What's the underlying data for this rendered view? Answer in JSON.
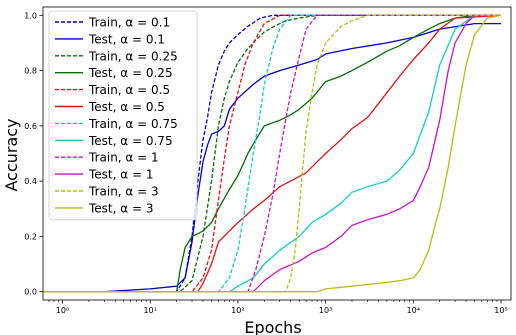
{
  "chart_data": {
    "type": "line",
    "xlabel": "Epochs",
    "ylabel": "Accuracy",
    "xscale": "log",
    "xlim": [
      0.6,
      130000
    ],
    "ylim": [
      -0.03,
      1.03
    ],
    "xticks": [
      1,
      10,
      100,
      1000,
      10000,
      100000
    ],
    "xtick_labels": [
      "10⁰",
      "10¹",
      "10²",
      "10³",
      "10⁴",
      "10⁵"
    ],
    "yticks": [
      0.0,
      0.2,
      0.4,
      0.6,
      0.8,
      1.0
    ],
    "ytick_labels": [
      "0.0",
      "0.2",
      "0.4",
      "0.6",
      "0.8",
      "1.0"
    ],
    "grid": false,
    "legend_position": "top-left",
    "series": [
      {
        "name": "Train, α = 0.1",
        "color": "#0000cc",
        "dash": true,
        "x": [
          0.6,
          20,
          25,
          30,
          35,
          40,
          45,
          50,
          60,
          70,
          80,
          100,
          130,
          180,
          250,
          400,
          100000
        ],
        "y": [
          0,
          0,
          0.05,
          0.2,
          0.4,
          0.55,
          0.63,
          0.72,
          0.82,
          0.87,
          0.9,
          0.93,
          0.96,
          0.99,
          1.0,
          1.0,
          1.0
        ]
      },
      {
        "name": "Test, α = 0.1",
        "color": "#0000cc",
        "dash": false,
        "x": [
          0.6,
          3,
          10,
          20,
          25,
          30,
          35,
          40,
          45,
          50,
          60,
          70,
          80,
          100,
          150,
          200,
          300,
          500,
          800,
          1000,
          2000,
          5000,
          10000,
          20000,
          50000,
          100000
        ],
        "y": [
          0,
          0,
          0.01,
          0.02,
          0.05,
          0.18,
          0.35,
          0.47,
          0.53,
          0.57,
          0.58,
          0.6,
          0.66,
          0.7,
          0.75,
          0.78,
          0.8,
          0.82,
          0.84,
          0.86,
          0.88,
          0.9,
          0.92,
          0.95,
          0.97,
          0.97
        ]
      },
      {
        "name": "Train, α = 0.25",
        "color": "#007000",
        "dash": true,
        "x": [
          0.6,
          22,
          30,
          40,
          50,
          60,
          70,
          80,
          100,
          130,
          160,
          200,
          260,
          350,
          500,
          800,
          100000
        ],
        "y": [
          0,
          0,
          0.04,
          0.2,
          0.4,
          0.6,
          0.7,
          0.76,
          0.83,
          0.88,
          0.91,
          0.94,
          0.96,
          0.98,
          0.99,
          1.0,
          1.0
        ]
      },
      {
        "name": "Test, α = 0.25",
        "color": "#007000",
        "dash": false,
        "x": [
          0.6,
          20,
          22,
          25,
          30,
          35,
          40,
          50,
          60,
          80,
          100,
          130,
          160,
          200,
          300,
          400,
          500,
          700,
          1000,
          1500,
          2000,
          3000,
          5000,
          7000,
          10000,
          15000,
          20000,
          30000,
          50000,
          100000
        ],
        "y": [
          0,
          0,
          0.08,
          0.16,
          0.2,
          0.21,
          0.22,
          0.25,
          0.3,
          0.37,
          0.42,
          0.5,
          0.55,
          0.6,
          0.62,
          0.64,
          0.66,
          0.7,
          0.76,
          0.78,
          0.8,
          0.83,
          0.87,
          0.89,
          0.92,
          0.95,
          0.97,
          0.99,
          1.0,
          1.0
        ]
      },
      {
        "name": "Train, α = 0.5",
        "color": "#ee1111",
        "dash": true,
        "x": [
          0.6,
          30,
          40,
          50,
          60,
          70,
          80,
          100,
          120,
          150,
          200,
          300,
          100000
        ],
        "y": [
          0,
          0,
          0.05,
          0.15,
          0.33,
          0.48,
          0.6,
          0.72,
          0.82,
          0.9,
          0.97,
          1.0,
          1.0
        ]
      },
      {
        "name": "Test, α = 0.5",
        "color": "#ee1111",
        "dash": false,
        "x": [
          0.6,
          35,
          40,
          50,
          60,
          80,
          100,
          150,
          200,
          300,
          400,
          600,
          800,
          1000,
          1500,
          2000,
          3000,
          4000,
          5000,
          7000,
          10000,
          15000,
          20000,
          30000,
          100000
        ],
        "y": [
          0,
          0,
          0.03,
          0.1,
          0.18,
          0.22,
          0.25,
          0.3,
          0.33,
          0.38,
          0.4,
          0.43,
          0.47,
          0.5,
          0.55,
          0.59,
          0.63,
          0.68,
          0.72,
          0.78,
          0.84,
          0.9,
          0.95,
          0.99,
          1.0
        ]
      },
      {
        "name": "Train, α = 0.75",
        "color": "#11cccc",
        "dash": true,
        "x": [
          0.6,
          60,
          80,
          100,
          120,
          150,
          180,
          200,
          250,
          300,
          400,
          100000
        ],
        "y": [
          0,
          0,
          0.05,
          0.15,
          0.3,
          0.5,
          0.65,
          0.75,
          0.88,
          0.95,
          1.0,
          1.0
        ]
      },
      {
        "name": "Test, α = 0.75",
        "color": "#11cccc",
        "dash": false,
        "x": [
          0.6,
          80,
          100,
          150,
          200,
          300,
          500,
          700,
          1000,
          1500,
          2000,
          3000,
          5000,
          7000,
          10000,
          15000,
          20000,
          30000,
          50000,
          100000
        ],
        "y": [
          0,
          0,
          0.02,
          0.05,
          0.1,
          0.15,
          0.2,
          0.25,
          0.28,
          0.32,
          0.36,
          0.38,
          0.4,
          0.44,
          0.5,
          0.65,
          0.82,
          0.95,
          1.0,
          1.0
        ]
      },
      {
        "name": "Train, α = 1",
        "color": "#cc11cc",
        "dash": true,
        "x": [
          0.6,
          130,
          160,
          200,
          250,
          300,
          350,
          400,
          500,
          600,
          800,
          100000
        ],
        "y": [
          0,
          0,
          0.08,
          0.2,
          0.35,
          0.5,
          0.62,
          0.72,
          0.85,
          0.95,
          1.0,
          1.0
        ]
      },
      {
        "name": "Test, α = 1",
        "color": "#cc11cc",
        "dash": false,
        "x": [
          0.6,
          150,
          200,
          300,
          500,
          700,
          1000,
          1500,
          2000,
          3000,
          5000,
          7000,
          10000,
          12000,
          15000,
          20000,
          25000,
          30000,
          40000,
          50000,
          100000
        ],
        "y": [
          0,
          0,
          0.04,
          0.08,
          0.11,
          0.14,
          0.16,
          0.2,
          0.24,
          0.26,
          0.28,
          0.3,
          0.33,
          0.38,
          0.45,
          0.62,
          0.8,
          0.9,
          0.97,
          1.0,
          1.0
        ]
      },
      {
        "name": "Train, α = 3",
        "color": "#bbbb11",
        "dash": true,
        "x": [
          0.6,
          350,
          400,
          450,
          500,
          550,
          600,
          700,
          800,
          1000,
          1500,
          2000,
          3000,
          100000
        ],
        "y": [
          0,
          0,
          0.05,
          0.15,
          0.3,
          0.45,
          0.58,
          0.72,
          0.82,
          0.9,
          0.96,
          0.98,
          1.0,
          1.0
        ]
      },
      {
        "name": "Test, α = 3",
        "color": "#bbbb11",
        "dash": false,
        "x": [
          0.6,
          800,
          1000,
          2000,
          4000,
          7000,
          10000,
          12000,
          15000,
          18000,
          20000,
          25000,
          30000,
          35000,
          40000,
          50000,
          70000,
          100000
        ],
        "y": [
          0,
          0,
          0.01,
          0.02,
          0.03,
          0.04,
          0.05,
          0.08,
          0.15,
          0.25,
          0.3,
          0.45,
          0.6,
          0.72,
          0.82,
          0.93,
          0.99,
          1.0
        ]
      }
    ]
  }
}
